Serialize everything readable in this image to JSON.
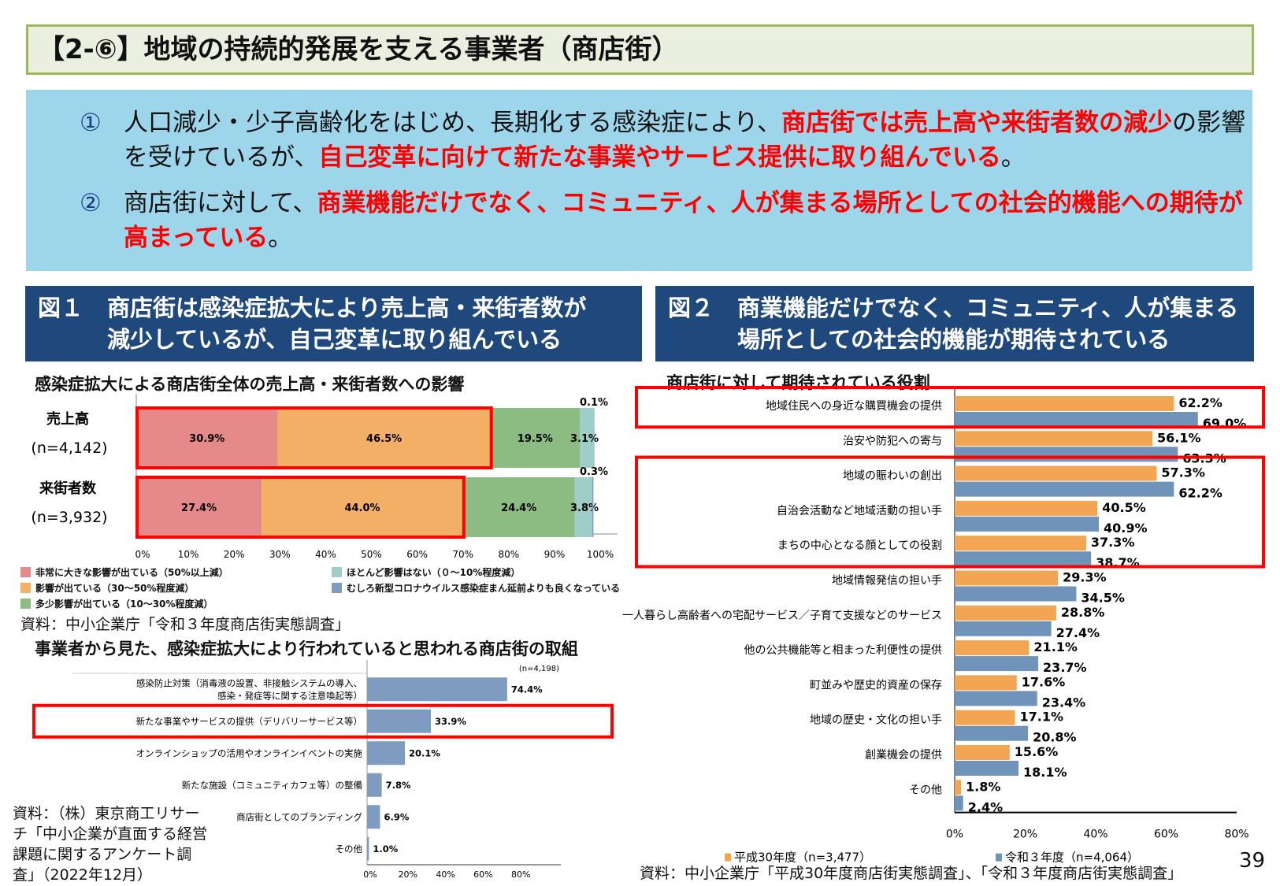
{
  "title": "【2-⑥】地域の持続的発展を支える事業者（商店街）",
  "summary": {
    "points": [
      {
        "num": "①",
        "parts": [
          {
            "text": "人口減少・少子高齢化をはじめ、長期化する感染症により、",
            "red": false
          },
          {
            "text": "商店街では売上高や来街者数の減少",
            "red": true
          },
          {
            "text": "の影響を受けているが、",
            "red": false
          },
          {
            "text": "自己変革に向けて新たな事業やサービス提供に取り組んでいる",
            "red": true
          },
          {
            "text": "。",
            "red": false
          }
        ]
      },
      {
        "num": "②",
        "parts": [
          {
            "text": "商店街に対して、",
            "red": false
          },
          {
            "text": "商業機能だけでなく、コミュニティ、人が集まる場所としての社会的機能への期待が高まっている",
            "red": true
          },
          {
            "text": "。",
            "red": false
          }
        ]
      }
    ]
  },
  "fig1": {
    "no": "図１",
    "line1": "商店街は感染症拡大により売上高・来街者数が",
    "line2": "減少しているが、自己変革に取り組んでいる"
  },
  "fig2": {
    "no": "図２",
    "line1": "商業機能だけでなく、コミュニティ、人が集まる",
    "line2": "場所としての社会的機能が期待されている"
  },
  "chart_data": [
    {
      "type": "bar",
      "stacked": true,
      "orientation": "horizontal",
      "title": "感染症拡大による商店街全体の売上高・来街者数への影響",
      "categories": [
        {
          "label": "売上高",
          "n": "(n=4,142)"
        },
        {
          "label": "来街者数",
          "n": "(n=3,932)"
        }
      ],
      "series": [
        {
          "name": "非常に大きな影響が出ている（50%以上減）",
          "color": "#e6898a",
          "values": [
            30.9,
            27.4
          ]
        },
        {
          "name": "影響が出ている（30～50%程度減）",
          "color": "#f4af67",
          "values": [
            46.5,
            44.0
          ]
        },
        {
          "name": "多少影響が出ている（10～30%程度減）",
          "color": "#8cbc82",
          "values": [
            19.5,
            24.4
          ]
        },
        {
          "name": "ほとんど影響はない（０～10%程度減）",
          "color": "#9fcdc8",
          "values": [
            3.1,
            3.8
          ]
        },
        {
          "name": "むしろ新型コロナウイルス感染症まん延前よりも良くなっている",
          "color": "#7f9cc0",
          "values": [
            0.1,
            0.3
          ]
        }
      ],
      "data_labels": [
        [
          "30.9%",
          "46.5%",
          "19.5%",
          "3.1%",
          "0.1%"
        ],
        [
          "27.4%",
          "44.0%",
          "24.4%",
          "3.8%",
          "0.3%"
        ]
      ],
      "xticks": [
        "0%",
        "10%",
        "20%",
        "30%",
        "40%",
        "50%",
        "60%",
        "70%",
        "80%",
        "90%",
        "100%"
      ],
      "xlim": [
        0,
        100
      ],
      "legend_position": "bottom",
      "highlight_color": "#ff0000",
      "source": "資料：中小企業庁「令和３年度商店街実態調査」"
    },
    {
      "type": "bar",
      "orientation": "horizontal",
      "title": "事業者から見た、感染症拡大により行われていると思われる商店街の取組",
      "note": "(n=4,198)",
      "categories": [
        "感染防止対策（消毒液の設置、非接触システムの導入、|感染・発症等に関する注意喚起等）",
        "新たな事業やサービスの提供（デリバリーサービス等）",
        "オンラインショップの活用やオンラインイベントの実施",
        "新たな施設（コミュニティカフェ等）の整備",
        "商店街としてのブランディング",
        "その他"
      ],
      "values": [
        74.4,
        33.9,
        20.1,
        7.8,
        6.9,
        1.0
      ],
      "data_labels": [
        "74.4%",
        "33.9%",
        "20.1%",
        "7.8%",
        "6.9%",
        "1.0%"
      ],
      "color": "#7f9cc0",
      "xticks": [
        "0%",
        "20%",
        "40%",
        "60%",
        "80%"
      ],
      "xlim": [
        0,
        100
      ],
      "highlighted": [
        1
      ],
      "source": "資料：（株）東京商工リサーチ「中小企業が直面する経営課題に関するアンケート調査」（2022年12月）"
    },
    {
      "type": "bar",
      "orientation": "horizontal",
      "title": "商店街に対して期待されている役割",
      "categories": [
        "地域住民への身近な購買機会の提供",
        "治安や防犯への寄与",
        "地域の賑わいの創出",
        "自治会活動など地域活動の担い手",
        "まちの中心となる顔としての役割",
        "地域情報発信の担い手",
        "一人暮らし高齢者への宅配サービス／子育て支援などのサービス",
        "他の公共機能等と相まった利便性の提供",
        "町並みや歴史的資産の保存",
        "地域の歴史・文化の担い手",
        "創業機会の提供",
        "その他"
      ],
      "series": [
        {
          "name": "平成30年度（n=3,477）",
          "color": "#f2a553",
          "values": [
            62.2,
            56.1,
            57.3,
            40.5,
            37.3,
            29.3,
            28.8,
            21.1,
            17.6,
            17.1,
            15.6,
            1.8
          ]
        },
        {
          "name": "令和３年度（n=4,064）",
          "color": "#7093ba",
          "values": [
            69.0,
            63.3,
            62.2,
            40.9,
            38.7,
            34.5,
            27.4,
            23.7,
            23.4,
            20.8,
            18.1,
            2.4
          ]
        }
      ],
      "xticks": [
        "0%",
        "20%",
        "40%",
        "60%",
        "80%"
      ],
      "xlim": [
        0,
        80
      ],
      "legend_position": "bottom",
      "highlighted": [
        [
          0
        ],
        [
          2,
          3,
          4
        ]
      ],
      "source": "資料：中小企業庁「平成30年度商店街実態調査」、「令和３年度商店街実態調査」"
    }
  ],
  "page_number": "39"
}
